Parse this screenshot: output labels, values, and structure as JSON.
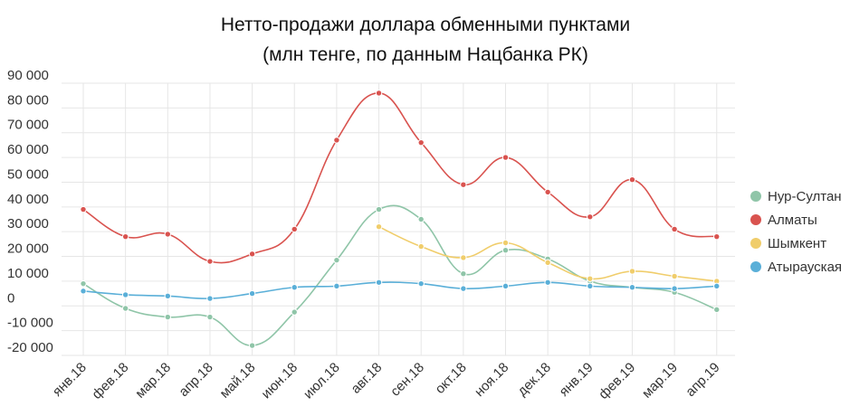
{
  "chart_data": {
    "type": "line",
    "title_line1": "Нетто-продажи доллара обменными пунктами",
    "title_line2": "(млн тенге, по данным Нацбанка РК)",
    "categories": [
      "янв.18",
      "фев.18",
      "мар.18",
      "апр.18",
      "май.18",
      "июн.18",
      "июл.18",
      "авг.18",
      "сен.18",
      "окт.18",
      "ноя.18",
      "дек.18",
      "янв.19",
      "фев.19",
      "мар.19",
      "апр.19"
    ],
    "ylim": [
      -20000,
      90000
    ],
    "yticks": [
      90000,
      80000,
      70000,
      60000,
      50000,
      40000,
      30000,
      20000,
      10000,
      0,
      -10000,
      -20000
    ],
    "ytick_labels": [
      "90 000",
      "80 000",
      "70 000",
      "60 000",
      "50 000",
      "40 000",
      "30 000",
      "20 000",
      "10 000",
      "0",
      "-10 000",
      "-20 000"
    ],
    "grid": true,
    "legend_position": "right",
    "series": [
      {
        "name": "Нур-Султан",
        "color": "#8fc5a8",
        "values": [
          9000,
          -1000,
          -4500,
          -4500,
          -16000,
          -2500,
          18500,
          39000,
          35000,
          13000,
          22500,
          19000,
          10000,
          7500,
          5500,
          -1500
        ]
      },
      {
        "name": "Алматы",
        "color": "#d9534f",
        "values": [
          39000,
          28000,
          29000,
          18000,
          21000,
          31000,
          67000,
          86000,
          66000,
          49000,
          60000,
          46000,
          36000,
          51000,
          31000,
          28000
        ]
      },
      {
        "name": "Шымкент",
        "color": "#f0cd6b",
        "values": [
          null,
          null,
          null,
          null,
          null,
          null,
          null,
          32000,
          24000,
          19500,
          25500,
          17500,
          11000,
          14000,
          12000,
          10000
        ]
      },
      {
        "name": "Атырауская",
        "color": "#5aafd8",
        "values": [
          6000,
          4500,
          4000,
          3000,
          5000,
          7500,
          8000,
          9500,
          9000,
          7000,
          8000,
          9500,
          8000,
          7500,
          7000,
          8000
        ]
      }
    ]
  }
}
